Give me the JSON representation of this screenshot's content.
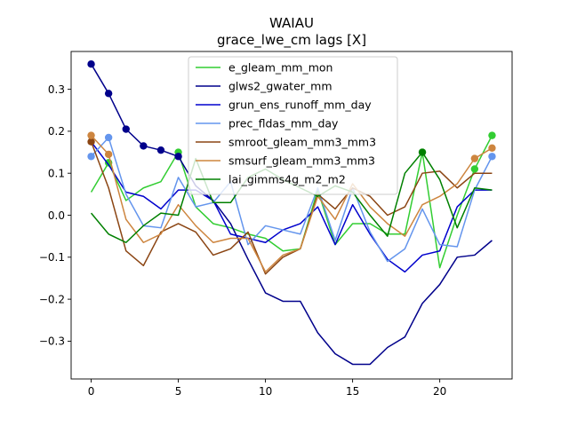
{
  "chart_data": {
    "type": "line",
    "title": "WAIAU",
    "subtitle": "grace_lwe_cm lags [X]",
    "xlabel": "",
    "ylabel": "",
    "xlim": [
      -1.15,
      24.15
    ],
    "ylim": [
      -0.39,
      0.39
    ],
    "xticks": [
      0,
      5,
      10,
      15,
      20
    ],
    "yticks": [
      -0.3,
      -0.2,
      -0.1,
      0.0,
      0.1,
      0.2,
      0.3
    ],
    "ytick_labels": [
      "−0.3",
      "−0.2",
      "−0.1",
      "0.0",
      "0.1",
      "0.2",
      "0.3"
    ],
    "legend_position": "upper-center",
    "grid": false,
    "x": [
      0,
      1,
      2,
      3,
      4,
      5,
      6,
      7,
      8,
      9,
      10,
      11,
      12,
      13,
      14,
      15,
      16,
      17,
      18,
      19,
      20,
      21,
      22,
      23
    ],
    "series": [
      {
        "name": "e_gleam_mm_mon",
        "color": "#32cd32",
        "values": [
          0.055,
          0.125,
          0.035,
          0.065,
          0.08,
          0.15,
          0.02,
          -0.02,
          -0.03,
          -0.045,
          -0.055,
          -0.085,
          -0.08,
          0.06,
          -0.07,
          -0.02,
          -0.02,
          -0.045,
          -0.045,
          0.15,
          -0.125,
          0.0,
          0.11,
          0.19
        ],
        "markers": [
          {
            "x": 1,
            "y": 0.125
          },
          {
            "x": 5,
            "y": 0.15
          },
          {
            "x": 19,
            "y": 0.15
          },
          {
            "x": 22,
            "y": 0.11
          },
          {
            "x": 23,
            "y": 0.19
          }
        ]
      },
      {
        "name": "glws2_gwater_mm",
        "color": "#00008b",
        "values": [
          0.36,
          0.29,
          0.205,
          0.165,
          0.155,
          0.14,
          0.07,
          0.035,
          -0.02,
          -0.105,
          -0.185,
          -0.205,
          -0.205,
          -0.28,
          -0.33,
          -0.355,
          -0.355,
          -0.315,
          -0.29,
          -0.21,
          -0.165,
          -0.1,
          -0.095,
          -0.06
        ],
        "markers": [
          {
            "x": 0,
            "y": 0.36
          },
          {
            "x": 1,
            "y": 0.29
          },
          {
            "x": 2,
            "y": 0.205
          },
          {
            "x": 3,
            "y": 0.165
          },
          {
            "x": 4,
            "y": 0.155
          },
          {
            "x": 5,
            "y": 0.14
          }
        ]
      },
      {
        "name": "grun_ens_runoff_mm_day",
        "color": "#0000cd",
        "values": [
          0.175,
          0.12,
          0.055,
          0.045,
          0.015,
          0.06,
          0.06,
          0.035,
          -0.045,
          -0.055,
          -0.065,
          -0.035,
          -0.02,
          0.02,
          -0.07,
          0.025,
          -0.045,
          -0.105,
          -0.135,
          -0.095,
          -0.085,
          0.02,
          0.06,
          0.06
        ],
        "markers": []
      },
      {
        "name": "prec_fldas_mm_day",
        "color": "#6495ed",
        "values": [
          0.14,
          0.185,
          0.05,
          -0.025,
          -0.03,
          0.09,
          0.02,
          0.03,
          0.08,
          -0.07,
          -0.025,
          -0.035,
          -0.045,
          0.065,
          -0.06,
          0.065,
          -0.04,
          -0.11,
          -0.08,
          0.015,
          -0.07,
          -0.075,
          0.06,
          0.14
        ],
        "markers": [
          {
            "x": 0,
            "y": 0.14
          },
          {
            "x": 1,
            "y": 0.185
          },
          {
            "x": 23,
            "y": 0.14
          }
        ]
      },
      {
        "name": "smroot_gleam_mm3_mm3",
        "color": "#8b4513",
        "values": [
          0.175,
          0.065,
          -0.085,
          -0.12,
          -0.04,
          -0.02,
          -0.04,
          -0.095,
          -0.08,
          -0.04,
          -0.14,
          -0.1,
          -0.08,
          0.05,
          0.015,
          0.065,
          0.045,
          0.0,
          0.02,
          0.1,
          0.105,
          0.065,
          0.1,
          0.1
        ],
        "markers": [
          {
            "x": 0,
            "y": 0.175
          }
        ]
      },
      {
        "name": "smsurf_gleam_mm3_mm3",
        "color": "#cd853f",
        "values": [
          0.19,
          0.145,
          -0.01,
          -0.065,
          -0.045,
          0.025,
          -0.025,
          -0.065,
          -0.055,
          -0.055,
          -0.135,
          -0.095,
          -0.08,
          0.045,
          -0.01,
          0.075,
          0.02,
          -0.02,
          -0.05,
          0.025,
          0.045,
          0.075,
          0.135,
          0.16
        ],
        "markers": [
          {
            "x": 0,
            "y": 0.19
          },
          {
            "x": 1,
            "y": 0.145
          },
          {
            "x": 22,
            "y": 0.135
          },
          {
            "x": 23,
            "y": 0.16
          }
        ]
      },
      {
        "name": "lai_gimms4g_m2_m2",
        "color": "#008000",
        "values": [
          0.005,
          -0.045,
          -0.065,
          -0.025,
          0.005,
          0.0,
          0.135,
          0.03,
          0.03,
          0.09,
          0.11,
          0.085,
          0.065,
          0.045,
          0.07,
          0.055,
          0.0,
          -0.05,
          0.1,
          0.15,
          0.085,
          -0.03,
          0.065,
          0.06
        ],
        "markers": [
          {
            "x": 19,
            "y": 0.15
          }
        ]
      }
    ]
  }
}
